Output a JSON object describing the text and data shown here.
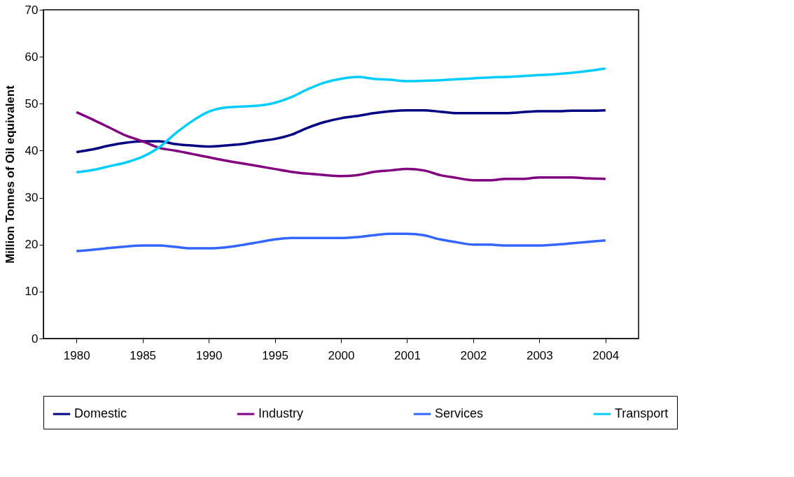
{
  "chart_data": {
    "type": "line",
    "ylabel": "Million Tonnes of Oil equivalent",
    "categories": [
      "1980",
      null,
      null,
      null,
      "1985",
      null,
      null,
      null,
      "1990",
      null,
      null,
      null,
      "1995",
      null,
      null,
      null,
      "2000",
      null,
      null,
      null,
      "2001",
      null,
      null,
      null,
      "2002",
      null,
      null,
      null,
      "2003",
      null,
      null,
      null,
      "2004"
    ],
    "series": [
      {
        "name": "Domestic",
        "color": "#000080",
        "values": [
          39.7,
          40.3,
          41.1,
          41.7,
          42.0,
          42.0,
          41.4,
          41.1,
          40.9,
          41.1,
          41.4,
          42.0,
          42.5,
          43.4,
          44.9,
          46.1,
          46.9,
          47.4,
          48.0,
          48.4,
          48.6,
          48.6,
          48.3,
          48.0,
          48.0,
          48.0,
          48.0,
          48.2,
          48.4,
          48.4,
          48.5,
          48.5,
          48.6
        ]
      },
      {
        "name": "Industry",
        "color": "#800080",
        "values": [
          48.2,
          46.6,
          44.9,
          43.2,
          42.0,
          40.6,
          40.0,
          39.3,
          38.6,
          37.9,
          37.3,
          36.7,
          36.1,
          35.5,
          35.1,
          34.8,
          34.6,
          34.8,
          35.5,
          35.8,
          36.1,
          35.8,
          34.8,
          34.2,
          33.7,
          33.7,
          34.0,
          34.0,
          34.3,
          34.3,
          34.3,
          34.1,
          34.0
        ]
      },
      {
        "name": "Services",
        "color": "#3366ff",
        "values": [
          18.6,
          18.9,
          19.3,
          19.6,
          19.8,
          19.8,
          19.5,
          19.2,
          19.2,
          19.4,
          19.9,
          20.5,
          21.1,
          21.4,
          21.4,
          21.4,
          21.4,
          21.6,
          22.0,
          22.3,
          22.3,
          22.0,
          21.1,
          20.5,
          20.0,
          20.0,
          19.8,
          19.8,
          19.8,
          20.0,
          20.3,
          20.6,
          20.9
        ]
      },
      {
        "name": "Transport",
        "color": "#00ccff",
        "values": [
          35.4,
          35.9,
          36.7,
          37.5,
          38.7,
          40.7,
          43.7,
          46.3,
          48.3,
          49.2,
          49.4,
          49.6,
          50.2,
          51.4,
          53.1,
          54.5,
          55.3,
          55.7,
          55.3,
          55.1,
          54.8,
          54.9,
          55.0,
          55.2,
          55.4,
          55.6,
          55.7,
          55.9,
          56.1,
          56.3,
          56.6,
          57.0,
          57.5
        ]
      }
    ],
    "ylim": [
      0,
      70
    ],
    "yticks": [
      0,
      10,
      20,
      30,
      40,
      50,
      60,
      70
    ],
    "grid": false,
    "legend": "bottom",
    "marker": "none",
    "line_style": "solid"
  }
}
